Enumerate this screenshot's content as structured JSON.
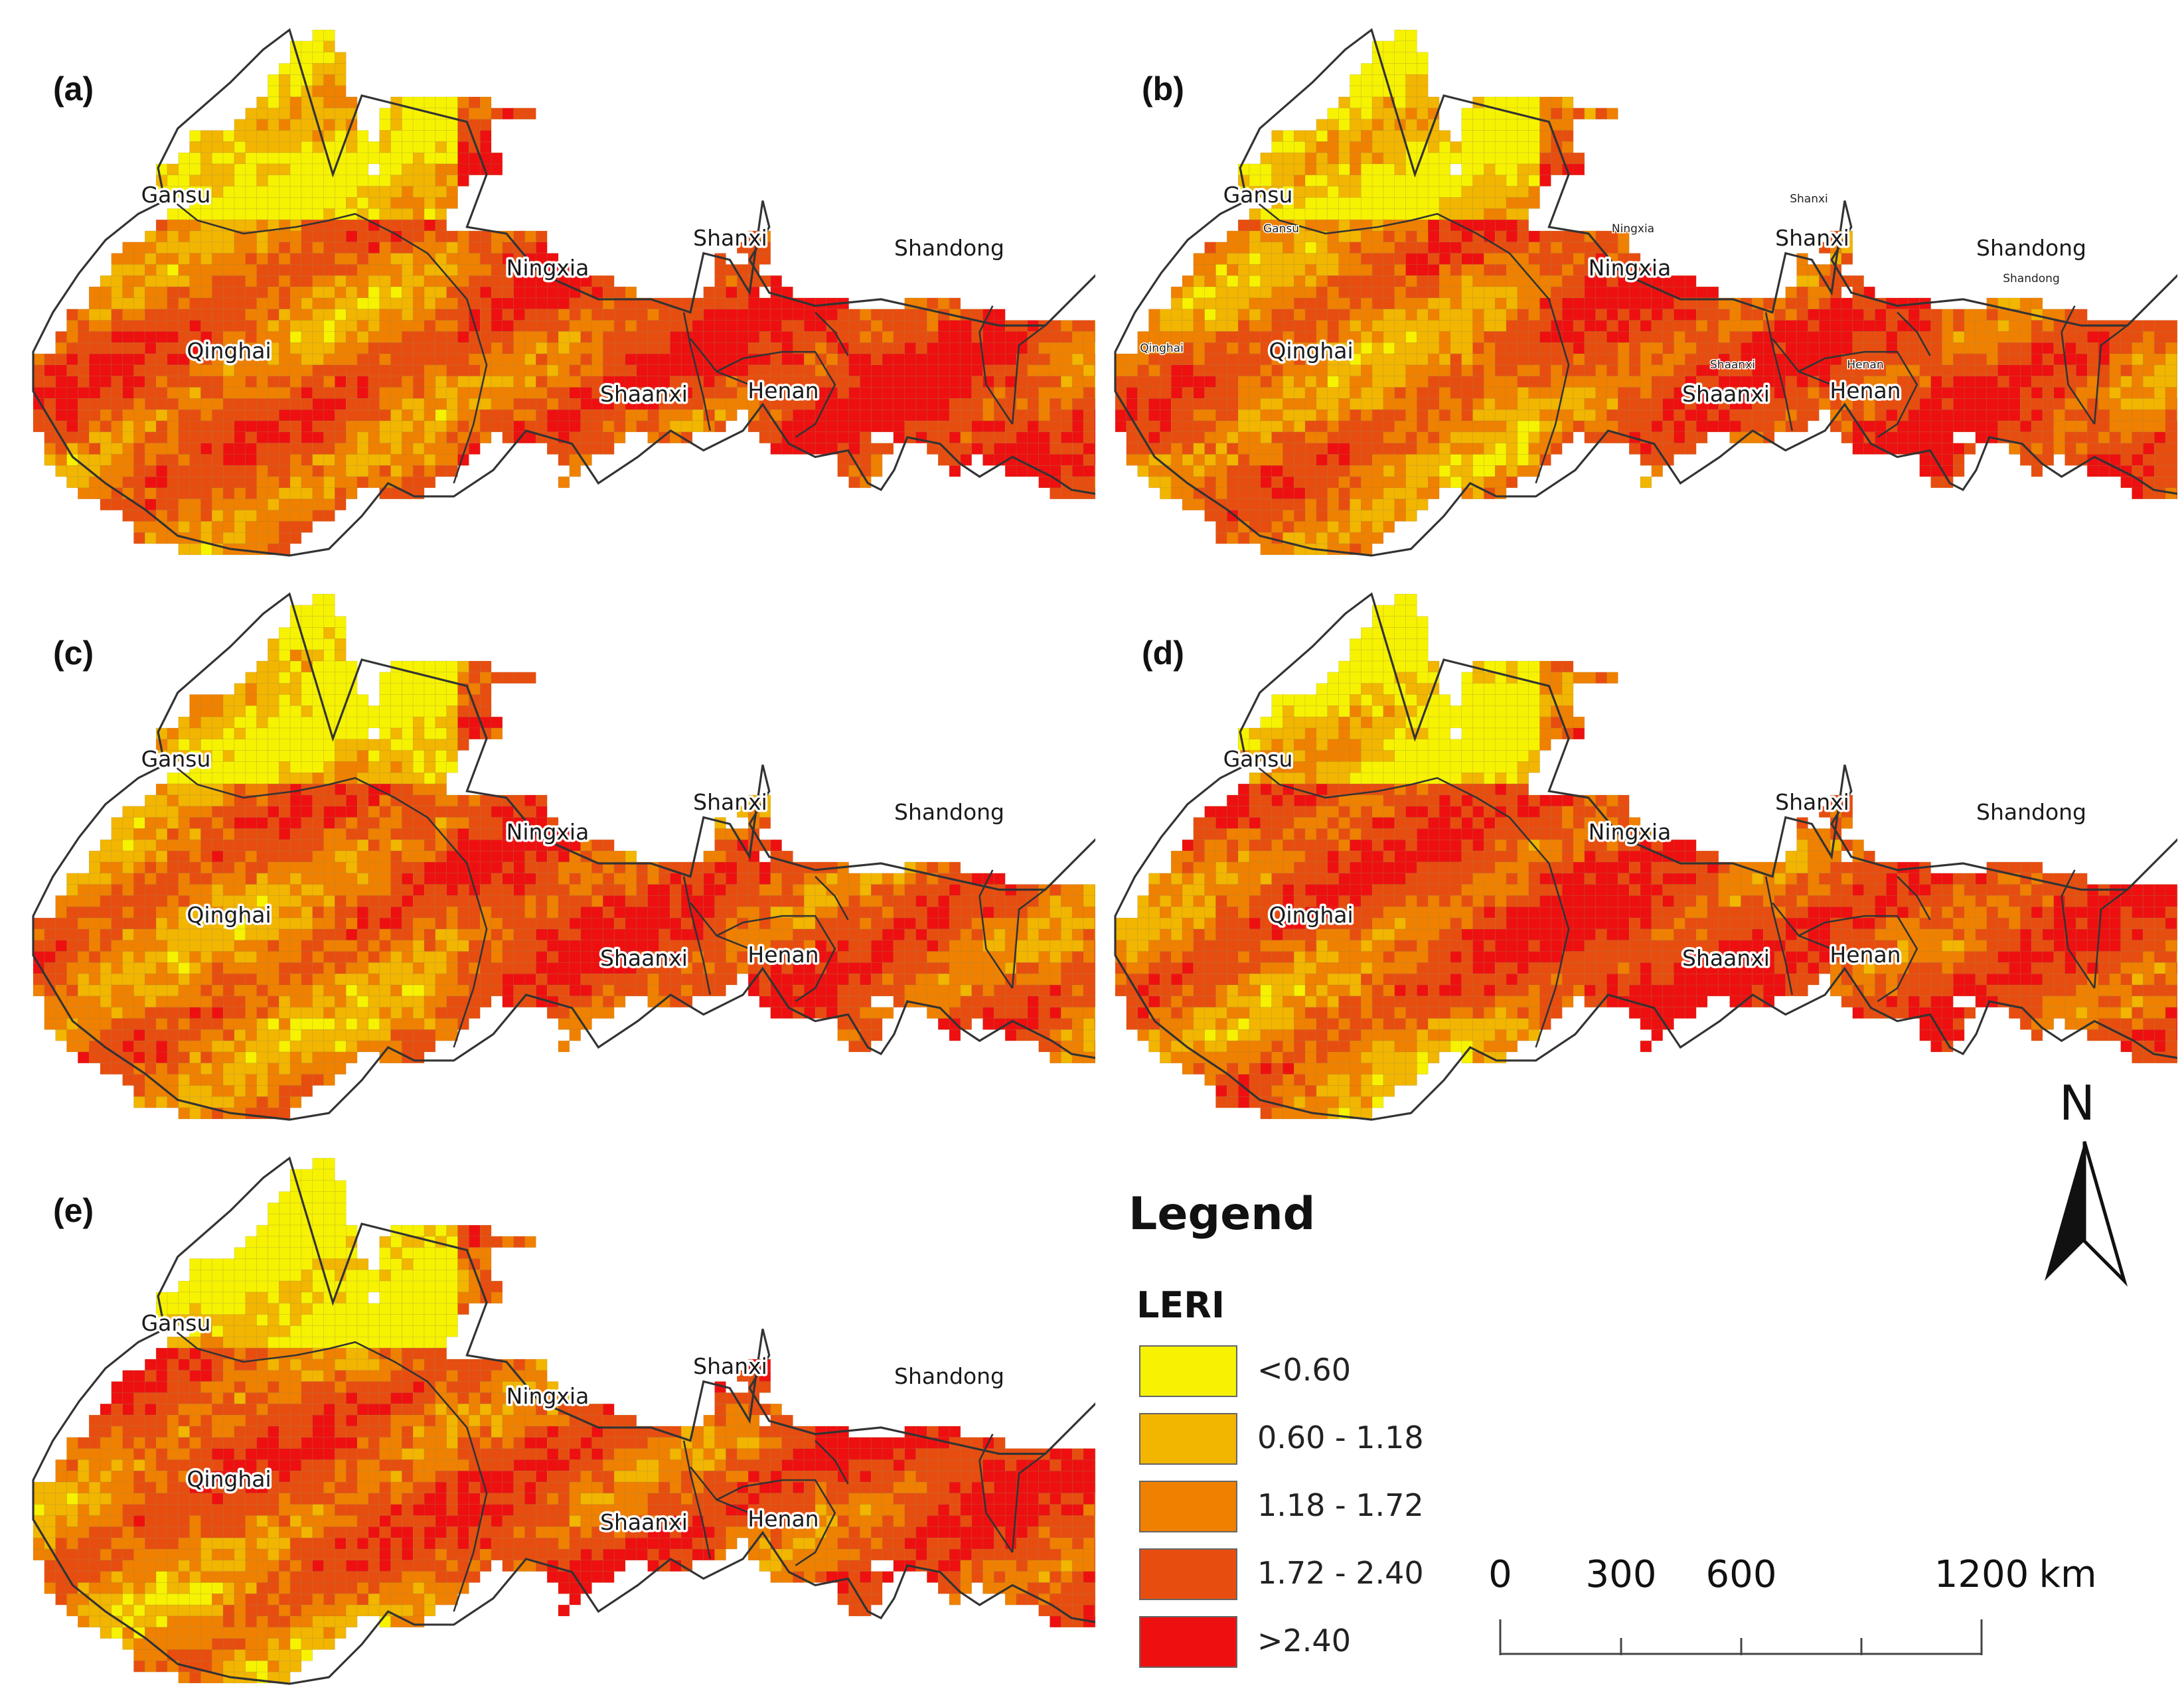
{
  "panels": [
    {
      "id": "a",
      "label": "(a)",
      "seed": 11
    },
    {
      "id": "b",
      "label": "(b)",
      "seed": 23
    },
    {
      "id": "c",
      "label": "(c)",
      "seed": 37
    },
    {
      "id": "d",
      "label": "(d)",
      "seed": 41
    },
    {
      "id": "e",
      "label": "(e)",
      "seed": 53
    }
  ],
  "provinces": [
    "Gansu",
    "Qinghai",
    "Ningxia",
    "Shaanxi",
    "Shanxi",
    "Henan",
    "Shandong"
  ],
  "panel_b_small_labels": [
    "Gansu",
    "Qinghai",
    "Ningxia",
    "Shaanxi",
    "Shanxi",
    "Henan",
    "Shandong"
  ],
  "legend": {
    "title": "Legend",
    "subtitle": "LERI",
    "classes": [
      {
        "label": "<0.60",
        "color": "#f7f200"
      },
      {
        "label": "0.60 - 1.18",
        "color": "#f2b500"
      },
      {
        "label": "1.18 - 1.72",
        "color": "#f08000"
      },
      {
        "label": "1.72 - 2.40",
        "color": "#e84d10"
      },
      {
        "label": ">2.40",
        "color": "#ee1010"
      }
    ]
  },
  "north_arrow": {
    "label": "N"
  },
  "scale_bar": {
    "ticks": [
      "0",
      "300",
      "600",
      "1200"
    ],
    "unit": "km"
  },
  "colors": {
    "boundary": "#333333",
    "grid": "#7a7a3a"
  }
}
